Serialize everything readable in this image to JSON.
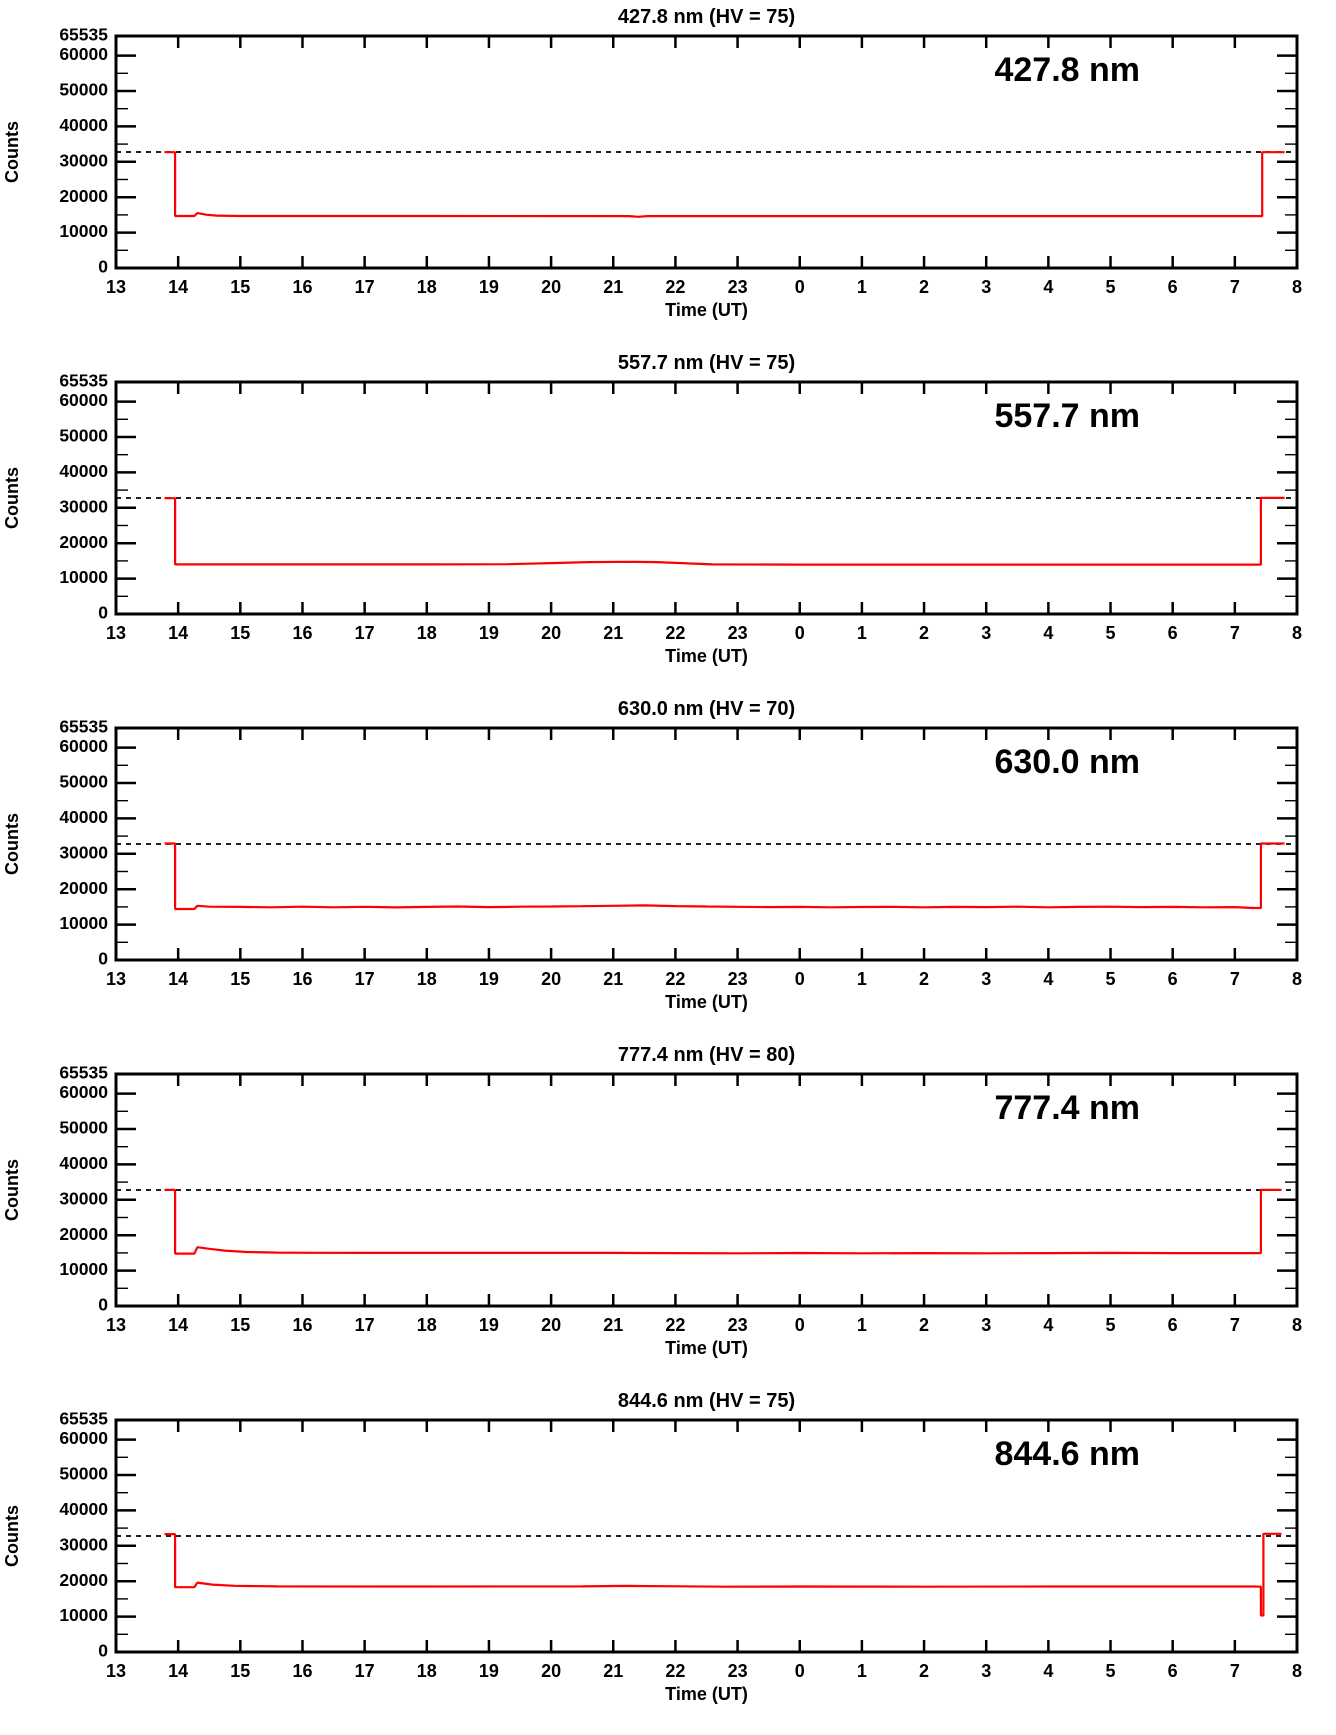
{
  "page": {
    "background": "#ffffff",
    "axis_color": "#000000",
    "trace_color": "#ff0000",
    "description_labels": {
      "y_axis": "Counts",
      "x_axis": "Time (UT)"
    }
  },
  "chart_data": [
    {
      "type": "line",
      "title": "427.8 nm (HV = 75)",
      "wavelength_label": "427.8 nm",
      "hv": 75,
      "xlabel": "Time (UT)",
      "ylabel": "Counts",
      "x_tick_labels": [
        "13",
        "14",
        "15",
        "16",
        "17",
        "18",
        "19",
        "20",
        "21",
        "22",
        "23",
        "0",
        "1",
        "2",
        "3",
        "4",
        "5",
        "6",
        "7",
        "8"
      ],
      "x_hours_span": 19,
      "ylim": [
        0,
        65535
      ],
      "y_major_ticks": [
        0,
        10000,
        20000,
        30000,
        40000,
        50000,
        60000,
        65535
      ],
      "y_minor_tick_step": 5000,
      "dashed_threshold": 32767,
      "line_color": "#ff0000",
      "series": [
        {
          "name": "counts",
          "points": [
            [
              0.78,
              32700
            ],
            [
              0.95,
              32700
            ],
            [
              0.95,
              14700
            ],
            [
              1.26,
              14700
            ],
            [
              1.31,
              15500
            ],
            [
              1.45,
              15050
            ],
            [
              1.62,
              14800
            ],
            [
              2.0,
              14700
            ],
            [
              5.0,
              14680
            ],
            [
              8.25,
              14660
            ],
            [
              8.4,
              14450
            ],
            [
              8.55,
              14650
            ],
            [
              11.0,
              14650
            ],
            [
              14.0,
              14650
            ],
            [
              17.0,
              14650
            ],
            [
              18.44,
              14650
            ],
            [
              18.44,
              32700
            ],
            [
              18.8,
              32700
            ]
          ]
        }
      ]
    },
    {
      "type": "line",
      "title": "557.7 nm (HV = 75)",
      "wavelength_label": "557.7 nm",
      "hv": 75,
      "xlabel": "Time (UT)",
      "ylabel": "Counts",
      "x_tick_labels": [
        "13",
        "14",
        "15",
        "16",
        "17",
        "18",
        "19",
        "20",
        "21",
        "22",
        "23",
        "0",
        "1",
        "2",
        "3",
        "4",
        "5",
        "6",
        "7",
        "8"
      ],
      "x_hours_span": 19,
      "ylim": [
        0,
        65535
      ],
      "y_major_ticks": [
        0,
        10000,
        20000,
        30000,
        40000,
        50000,
        60000,
        65535
      ],
      "y_minor_tick_step": 5000,
      "dashed_threshold": 32767,
      "line_color": "#ff0000",
      "series": [
        {
          "name": "counts",
          "points": [
            [
              0.78,
              32700
            ],
            [
              0.95,
              32700
            ],
            [
              0.95,
              14000
            ],
            [
              2.0,
              14000
            ],
            [
              5.0,
              14000
            ],
            [
              6.3,
              14080
            ],
            [
              7.0,
              14380
            ],
            [
              7.6,
              14650
            ],
            [
              8.2,
              14750
            ],
            [
              8.7,
              14650
            ],
            [
              9.2,
              14280
            ],
            [
              9.6,
              14020
            ],
            [
              11.0,
              13960
            ],
            [
              14.0,
              13950
            ],
            [
              17.0,
              13950
            ],
            [
              18.42,
              13950
            ],
            [
              18.42,
              32800
            ],
            [
              18.8,
              32800
            ]
          ]
        }
      ]
    },
    {
      "type": "line",
      "title": "630.0 nm (HV = 70)",
      "wavelength_label": "630.0 nm",
      "hv": 70,
      "xlabel": "Time (UT)",
      "ylabel": "Counts",
      "x_tick_labels": [
        "13",
        "14",
        "15",
        "16",
        "17",
        "18",
        "19",
        "20",
        "21",
        "22",
        "23",
        "0",
        "1",
        "2",
        "3",
        "4",
        "5",
        "6",
        "7",
        "8"
      ],
      "x_hours_span": 19,
      "ylim": [
        0,
        65535
      ],
      "y_major_ticks": [
        0,
        10000,
        20000,
        30000,
        40000,
        50000,
        60000,
        65535
      ],
      "y_minor_tick_step": 5000,
      "dashed_threshold": 32767,
      "line_color": "#ff0000",
      "series": [
        {
          "name": "counts",
          "points": [
            [
              0.78,
              32900
            ],
            [
              0.95,
              32900
            ],
            [
              0.95,
              14400
            ],
            [
              1.26,
              14400
            ],
            [
              1.31,
              15300
            ],
            [
              1.5,
              15050
            ],
            [
              2.0,
              15000
            ],
            [
              2.5,
              14880
            ],
            [
              3.0,
              15060
            ],
            [
              3.5,
              14900
            ],
            [
              4.0,
              15020
            ],
            [
              4.5,
              14860
            ],
            [
              5.0,
              15000
            ],
            [
              5.5,
              15120
            ],
            [
              6.0,
              14950
            ],
            [
              6.5,
              15060
            ],
            [
              7.0,
              15120
            ],
            [
              7.5,
              15200
            ],
            [
              8.0,
              15320
            ],
            [
              8.5,
              15420
            ],
            [
              9.0,
              15220
            ],
            [
              9.5,
              15100
            ],
            [
              10.0,
              15040
            ],
            [
              10.5,
              14950
            ],
            [
              11.0,
              15010
            ],
            [
              11.5,
              14900
            ],
            [
              12.0,
              14960
            ],
            [
              12.5,
              15010
            ],
            [
              13.0,
              14900
            ],
            [
              13.5,
              15000
            ],
            [
              14.0,
              14950
            ],
            [
              14.5,
              15060
            ],
            [
              15.0,
              14900
            ],
            [
              15.5,
              15000
            ],
            [
              16.0,
              15060
            ],
            [
              16.5,
              14950
            ],
            [
              17.0,
              15000
            ],
            [
              17.5,
              14900
            ],
            [
              18.0,
              14950
            ],
            [
              18.3,
              14700
            ],
            [
              18.42,
              14700
            ],
            [
              18.42,
              32900
            ],
            [
              18.8,
              32900
            ]
          ]
        }
      ]
    },
    {
      "type": "line",
      "title": "777.4 nm (HV = 80)",
      "wavelength_label": "777.4 nm",
      "hv": 80,
      "xlabel": "Time (UT)",
      "ylabel": "Counts",
      "x_tick_labels": [
        "13",
        "14",
        "15",
        "16",
        "17",
        "18",
        "19",
        "20",
        "21",
        "22",
        "23",
        "0",
        "1",
        "2",
        "3",
        "4",
        "5",
        "6",
        "7",
        "8"
      ],
      "x_hours_span": 19,
      "ylim": [
        0,
        65535
      ],
      "y_major_ticks": [
        0,
        10000,
        20000,
        30000,
        40000,
        50000,
        60000,
        65535
      ],
      "y_minor_tick_step": 5000,
      "dashed_threshold": 32767,
      "line_color": "#ff0000",
      "series": [
        {
          "name": "counts",
          "points": [
            [
              0.78,
              32800
            ],
            [
              0.95,
              32800
            ],
            [
              0.95,
              14800
            ],
            [
              1.26,
              14800
            ],
            [
              1.31,
              16600
            ],
            [
              1.5,
              16150
            ],
            [
              1.75,
              15650
            ],
            [
              2.1,
              15250
            ],
            [
              2.6,
              15080
            ],
            [
              3.2,
              15020
            ],
            [
              4.0,
              15000
            ],
            [
              6.0,
              15000
            ],
            [
              8.0,
              15000
            ],
            [
              9.0,
              14950
            ],
            [
              10.0,
              14900
            ],
            [
              11.0,
              14960
            ],
            [
              12.0,
              14900
            ],
            [
              13.0,
              14950
            ],
            [
              14.0,
              14900
            ],
            [
              15.0,
              14950
            ],
            [
              16.0,
              15000
            ],
            [
              17.0,
              14950
            ],
            [
              18.42,
              14950
            ],
            [
              18.42,
              32800
            ],
            [
              18.75,
              32800
            ]
          ]
        }
      ]
    },
    {
      "type": "line",
      "title": "844.6 nm (HV = 75)",
      "wavelength_label": "844.6 nm",
      "hv": 75,
      "xlabel": "Time (UT)",
      "ylabel": "Counts",
      "x_tick_labels": [
        "13",
        "14",
        "15",
        "16",
        "17",
        "18",
        "19",
        "20",
        "21",
        "22",
        "23",
        "0",
        "1",
        "2",
        "3",
        "4",
        "5",
        "6",
        "7",
        "8"
      ],
      "x_hours_span": 19,
      "ylim": [
        0,
        65535
      ],
      "y_major_ticks": [
        0,
        10000,
        20000,
        30000,
        40000,
        50000,
        60000,
        65535
      ],
      "y_minor_tick_step": 5000,
      "dashed_threshold": 32767,
      "line_color": "#ff0000",
      "series": [
        {
          "name": "counts",
          "points": [
            [
              0.78,
              33300
            ],
            [
              0.95,
              33300
            ],
            [
              0.95,
              18300
            ],
            [
              1.26,
              18300
            ],
            [
              1.31,
              19600
            ],
            [
              1.55,
              19050
            ],
            [
              1.9,
              18700
            ],
            [
              2.6,
              18520
            ],
            [
              5.0,
              18500
            ],
            [
              7.5,
              18520
            ],
            [
              8.2,
              18680
            ],
            [
              8.8,
              18600
            ],
            [
              9.8,
              18450
            ],
            [
              11.0,
              18500
            ],
            [
              13.0,
              18450
            ],
            [
              15.0,
              18500
            ],
            [
              17.0,
              18500
            ],
            [
              18.3,
              18500
            ],
            [
              18.42,
              18450
            ],
            [
              18.42,
              10300
            ],
            [
              18.46,
              10300
            ],
            [
              18.46,
              33400
            ],
            [
              18.75,
              33400
            ]
          ]
        }
      ]
    }
  ]
}
